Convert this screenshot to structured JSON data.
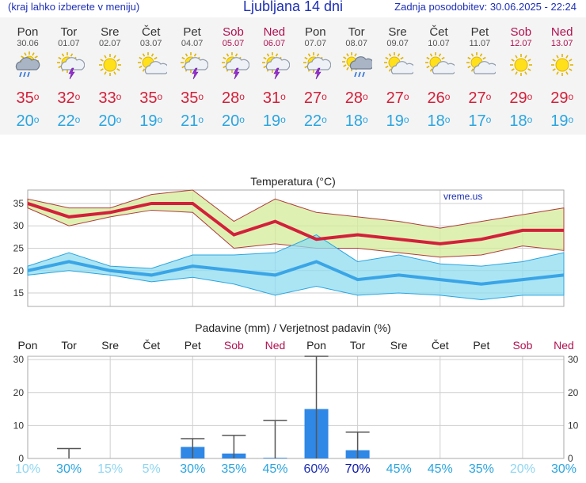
{
  "header": {
    "hint": "(kraj lahko izberete v meniju)",
    "title": "Ljubljana 14 dni",
    "updated": "Zadnja posodobitev: 30.06.2025 - 22:24"
  },
  "days": [
    {
      "name": "Pon",
      "date": "30.06",
      "weekend": false,
      "icon": "cloud-rain-icon",
      "tmax": "35",
      "tmin": "20"
    },
    {
      "name": "Tor",
      "date": "01.07",
      "weekend": false,
      "icon": "sun-thunder-icon",
      "tmax": "32",
      "tmin": "22"
    },
    {
      "name": "Sre",
      "date": "02.07",
      "weekend": false,
      "icon": "sun-icon",
      "tmax": "33",
      "tmin": "20"
    },
    {
      "name": "Čet",
      "date": "03.07",
      "weekend": false,
      "icon": "sun-cloud-icon",
      "tmax": "35",
      "tmin": "19"
    },
    {
      "name": "Pet",
      "date": "04.07",
      "weekend": false,
      "icon": "sun-thunder-icon",
      "tmax": "35",
      "tmin": "21"
    },
    {
      "name": "Sob",
      "date": "05.07",
      "weekend": true,
      "icon": "sun-thunder-icon",
      "tmax": "28",
      "tmin": "20"
    },
    {
      "name": "Ned",
      "date": "06.07",
      "weekend": true,
      "icon": "sun-thunder-icon",
      "tmax": "31",
      "tmin": "19"
    },
    {
      "name": "Pon",
      "date": "07.07",
      "weekend": false,
      "icon": "sun-thunder-icon",
      "tmax": "27",
      "tmin": "22"
    },
    {
      "name": "Tor",
      "date": "08.07",
      "weekend": false,
      "icon": "sun-rain-icon",
      "tmax": "28",
      "tmin": "18"
    },
    {
      "name": "Sre",
      "date": "09.07",
      "weekend": false,
      "icon": "sun-cloud-icon",
      "tmax": "27",
      "tmin": "19"
    },
    {
      "name": "Čet",
      "date": "10.07",
      "weekend": false,
      "icon": "sun-cloud-icon",
      "tmax": "26",
      "tmin": "18"
    },
    {
      "name": "Pet",
      "date": "11.07",
      "weekend": false,
      "icon": "sun-cloud-icon",
      "tmax": "27",
      "tmin": "17"
    },
    {
      "name": "Sob",
      "date": "12.07",
      "weekend": true,
      "icon": "sun-icon",
      "tmax": "29",
      "tmin": "18"
    },
    {
      "name": "Ned",
      "date": "13.07",
      "weekend": true,
      "icon": "sun-icon",
      "tmax": "29",
      "tmin": "19"
    }
  ],
  "degree_symbol": "o",
  "colors": {
    "title": "#1d2fb5",
    "max": "#d3203a",
    "min": "#2aa5e0",
    "weekend": "#b0104f",
    "bar": "#2f87e6"
  },
  "chart_data": [
    {
      "type": "line",
      "title": "Temperatura (°C)",
      "watermark": "vreme.us",
      "ylim": [
        12,
        38
      ],
      "yticks": [
        15,
        20,
        25,
        30,
        35
      ],
      "grid": true,
      "series": [
        {
          "values": [
            35,
            32,
            33,
            35,
            35,
            28,
            31,
            27,
            28,
            27,
            26,
            27,
            29,
            29
          ]
        },
        {
          "values": [
            36,
            34,
            34,
            37,
            38,
            31,
            36,
            33,
            32,
            31,
            29.5,
            31,
            32.5,
            34
          ]
        },
        {
          "values": [
            34,
            30,
            32,
            33.5,
            33,
            25,
            26,
            25,
            25,
            24,
            23,
            23.5,
            25.5,
            24.5
          ]
        },
        {
          "values": [
            20,
            22,
            20,
            19,
            21,
            20,
            19,
            22,
            18,
            19,
            18,
            17,
            18,
            19
          ]
        },
        {
          "values": [
            21,
            24,
            21,
            20.5,
            23.5,
            23.5,
            24,
            28,
            22,
            23.5,
            21.5,
            21,
            22,
            24
          ]
        },
        {
          "values": [
            19,
            20,
            19,
            17.5,
            18.5,
            17,
            14.5,
            16.5,
            14.5,
            15,
            14.5,
            13.5,
            14.5,
            14.5
          ]
        }
      ]
    },
    {
      "type": "bar",
      "title": "Padavine (mm) / Verjetnost padavin (%)",
      "categories": [
        "Pon",
        "Tor",
        "Sre",
        "Čet",
        "Pet",
        "Sob",
        "Ned",
        "Pon",
        "Tor",
        "Sre",
        "Čet",
        "Pet",
        "Sob",
        "Ned"
      ],
      "ylim": [
        0,
        31
      ],
      "yticks": [
        0,
        10,
        20,
        30
      ],
      "values": [
        0,
        0,
        0,
        0,
        3.5,
        1.5,
        0.2,
        15,
        2.5,
        0,
        0,
        0,
        0,
        0
      ],
      "max_values": [
        0,
        3,
        0,
        0,
        6,
        7,
        11.5,
        31,
        8,
        0,
        0,
        0,
        0,
        0
      ],
      "probability_labels": [
        "10%",
        "30%",
        "15%",
        "5%",
        "30%",
        "35%",
        "45%",
        "60%",
        "70%",
        "45%",
        "45%",
        "35%",
        "20%",
        "30%"
      ],
      "probability_values": [
        10,
        30,
        15,
        5,
        30,
        35,
        45,
        60,
        70,
        45,
        45,
        35,
        20,
        30
      ]
    }
  ]
}
